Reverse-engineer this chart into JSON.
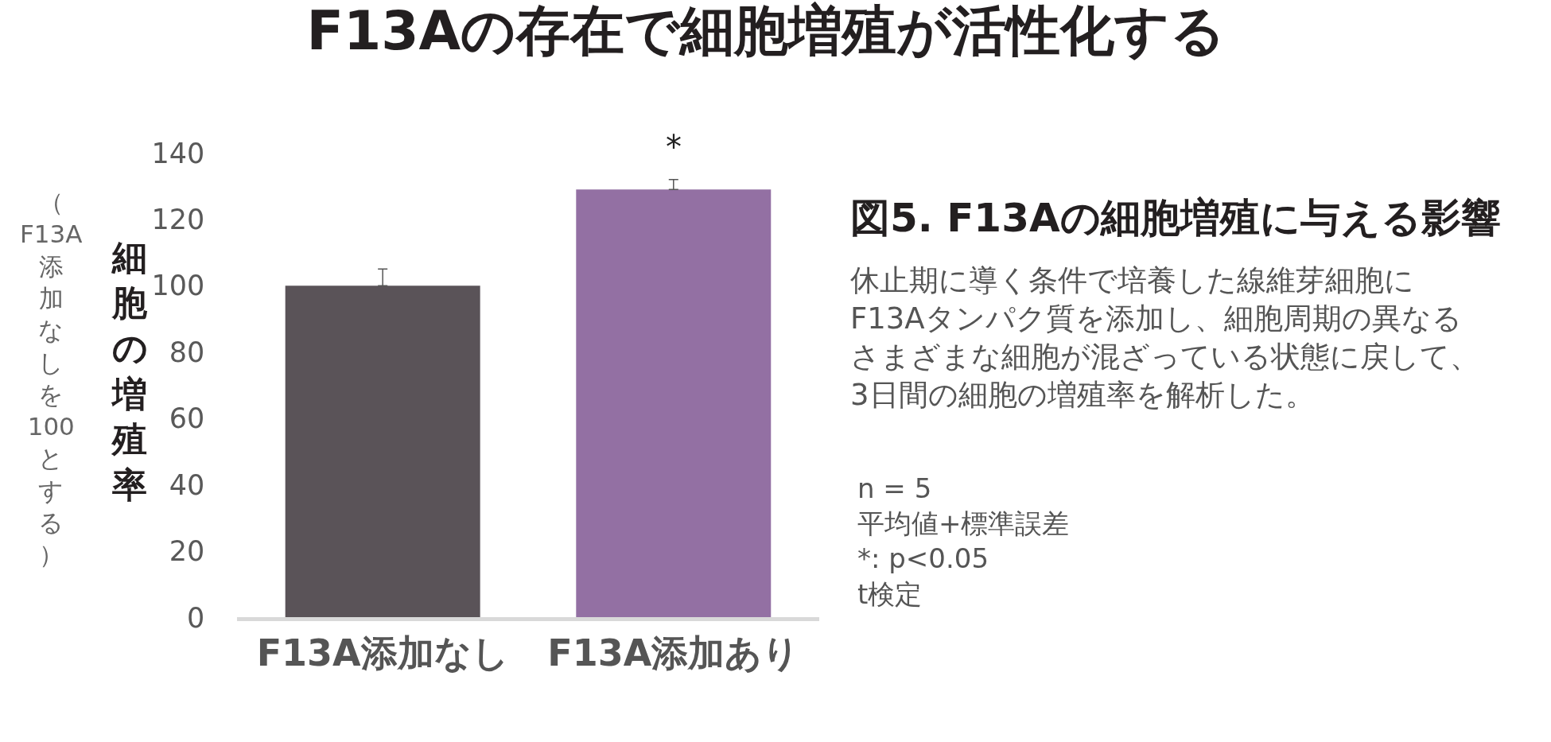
{
  "chart_data": {
    "type": "bar",
    "title": "F13Aの存在で細胞増殖が活性化する",
    "categories": [
      "F13A添加なし",
      "F13A添加あり"
    ],
    "values": [
      100,
      129
    ],
    "colors": [
      "#5a5358",
      "#9370a3"
    ],
    "errors": [
      [
        100,
        105
      ],
      [
        129,
        132
      ]
    ],
    "ylabel": "細胞の増殖率",
    "ylim": [
      0,
      140
    ],
    "yticks": [
      0,
      20,
      40,
      60,
      80,
      100,
      120,
      140
    ],
    "annotations": [
      "*",
      "（F13A添加なしを100とする）",
      "図5. F13Aの細胞増殖に与える影響",
      "休止期に導く条件で培養した線維芽細胞にF13Aタンパク質を添加し、細胞周期の異なるさまざまな細胞が混ざっている状態に戻して、3日間の細胞の増殖率を解析した。",
      "n = 5\n平均値+標準誤差\n*: p<0.05\nt検定"
    ]
  }
}
